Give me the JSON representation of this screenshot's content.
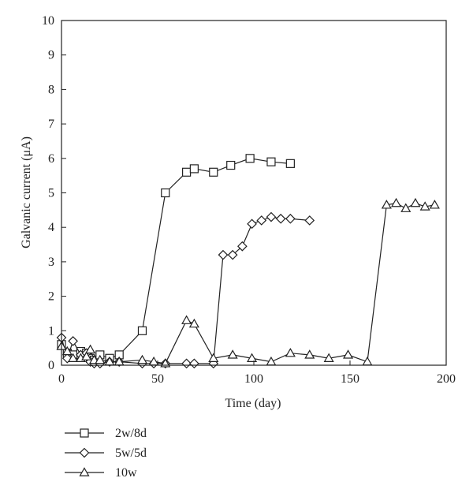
{
  "chart_data": {
    "type": "line",
    "title": "",
    "xlabel": "Time (day)",
    "ylabel": "Galvanic current (μA)",
    "xlim": [
      0,
      200
    ],
    "ylim": [
      0,
      10
    ],
    "xticks": [
      0,
      50,
      100,
      150,
      200
    ],
    "yticks": [
      0,
      1,
      2,
      3,
      4,
      5,
      6,
      7,
      8,
      9,
      10
    ],
    "grid": false,
    "legend_position": "bottom-left",
    "series": [
      {
        "name": "2w/8d",
        "marker": "square",
        "x": [
          0,
          3,
          6,
          10,
          13,
          15,
          17,
          20,
          25,
          30,
          42,
          54,
          65,
          69,
          79,
          88,
          98,
          109,
          119
        ],
        "y": [
          0.6,
          0.35,
          0.3,
          0.4,
          0.35,
          0.2,
          0.15,
          0.3,
          0.2,
          0.3,
          1.0,
          5.0,
          5.6,
          5.7,
          5.6,
          5.8,
          6.0,
          5.9,
          5.85
        ]
      },
      {
        "name": "5w/5d",
        "marker": "diamond",
        "x": [
          0,
          3,
          6,
          10,
          13,
          15,
          17,
          20,
          25,
          30,
          42,
          48,
          54,
          65,
          69,
          79,
          84,
          89,
          94,
          99,
          104,
          109,
          114,
          119,
          129
        ],
        "y": [
          0.8,
          0.2,
          0.7,
          0.3,
          0.35,
          0.1,
          0.05,
          0.05,
          0.1,
          0.1,
          0.05,
          0.05,
          0.05,
          0.05,
          0.05,
          0.05,
          3.2,
          3.2,
          3.45,
          4.1,
          4.2,
          4.3,
          4.25,
          4.25,
          4.2
        ]
      },
      {
        "name": "10w",
        "marker": "triangle",
        "x": [
          0,
          3,
          6,
          10,
          13,
          15,
          17,
          20,
          25,
          30,
          42,
          48,
          54,
          65,
          69,
          79,
          89,
          99,
          109,
          119,
          129,
          139,
          149,
          159,
          169,
          174,
          179,
          184,
          189,
          194
        ],
        "y": [
          0.55,
          0.4,
          0.2,
          0.2,
          0.25,
          0.45,
          0.15,
          0.15,
          0.1,
          0.1,
          0.15,
          0.1,
          0.05,
          1.3,
          1.2,
          0.2,
          0.3,
          0.2,
          0.1,
          0.35,
          0.3,
          0.2,
          0.3,
          0.1,
          4.65,
          4.7,
          4.55,
          4.7,
          4.6,
          4.65
        ]
      }
    ]
  }
}
